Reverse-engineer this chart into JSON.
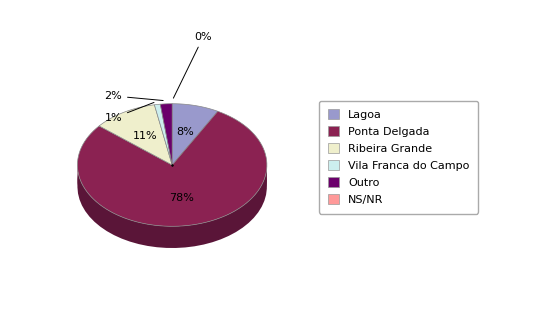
{
  "labels": [
    "Lagoa",
    "Ponta Delgada",
    "Ribeira Grande",
    "Vila Franca do Campo",
    "Outro",
    "NS/NR"
  ],
  "values": [
    8,
    78,
    11,
    1,
    2,
    0
  ],
  "colors": [
    "#9999CC",
    "#8B2252",
    "#EFEFCC",
    "#CCEEEE",
    "#6B006B",
    "#FF9999"
  ],
  "dark_colors": [
    "#6666AA",
    "#5A1538",
    "#CCCC99",
    "#99CCCC",
    "#440044",
    "#CC6666"
  ],
  "startangle": 90,
  "background_color": "#ffffff",
  "fig_width": 5.38,
  "fig_height": 3.14,
  "dpi": 100
}
